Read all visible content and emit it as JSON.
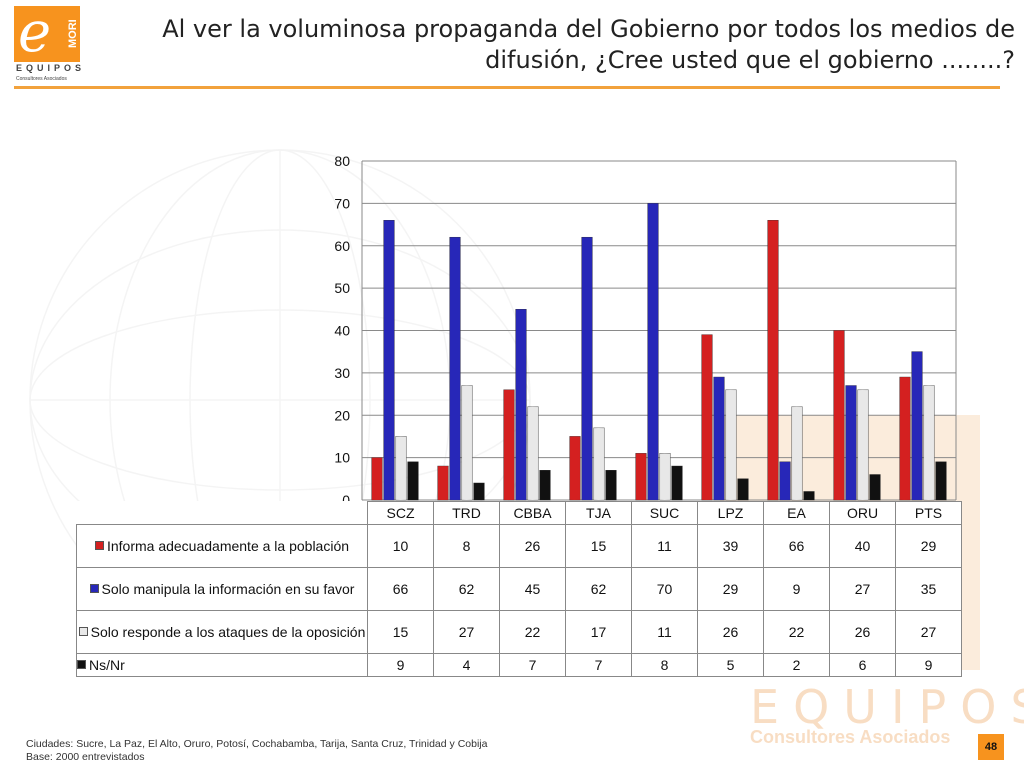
{
  "logo": {
    "letter": "e",
    "side": "MORI",
    "word": "EQUIPOS",
    "sub": "Consultores Asociados"
  },
  "title": "Al ver la voluminosa propaganda del Gobierno por todos los medios de difusión, ¿Cree usted que el gobierno ........?",
  "watermark": {
    "word": "EQUIPOS",
    "sub": "Consultores Asociados"
  },
  "colors": {
    "accent": "#f7931e",
    "rule": "#f2a23c"
  },
  "chart_data": {
    "type": "bar",
    "categories": [
      "SCZ",
      "TRD",
      "CBBA",
      "TJA",
      "SUC",
      "LPZ",
      "EA",
      "ORU",
      "PTS"
    ],
    "series": [
      {
        "name": "Informa adecuadamente a la población",
        "color": "#d42020",
        "values": [
          10,
          8,
          26,
          15,
          11,
          39,
          66,
          40,
          29
        ]
      },
      {
        "name": "Solo manipula la información en su favor",
        "color": "#2727b8",
        "values": [
          66,
          62,
          45,
          62,
          70,
          29,
          9,
          27,
          35
        ]
      },
      {
        "name": "Solo responde a los ataques de la oposición",
        "color": "#e8e8e8",
        "values": [
          15,
          27,
          22,
          17,
          11,
          26,
          22,
          26,
          27
        ]
      },
      {
        "name": "Ns/Nr",
        "color": "#111111",
        "values": [
          9,
          4,
          7,
          7,
          8,
          5,
          2,
          6,
          9
        ]
      }
    ],
    "ylim": [
      0,
      80
    ],
    "yticks": [
      0,
      10,
      20,
      30,
      40,
      50,
      60,
      70,
      80
    ],
    "grid": true,
    "legend": "data table below chart"
  },
  "footer": {
    "line1": "Ciudades: Sucre, La Paz, El Alto, Oruro, Potosí, Cochabamba, Tarija, Santa Cruz, Trinidad y Cobija",
    "line2": "Base: 2000 entrevistados"
  },
  "page_number": "48"
}
